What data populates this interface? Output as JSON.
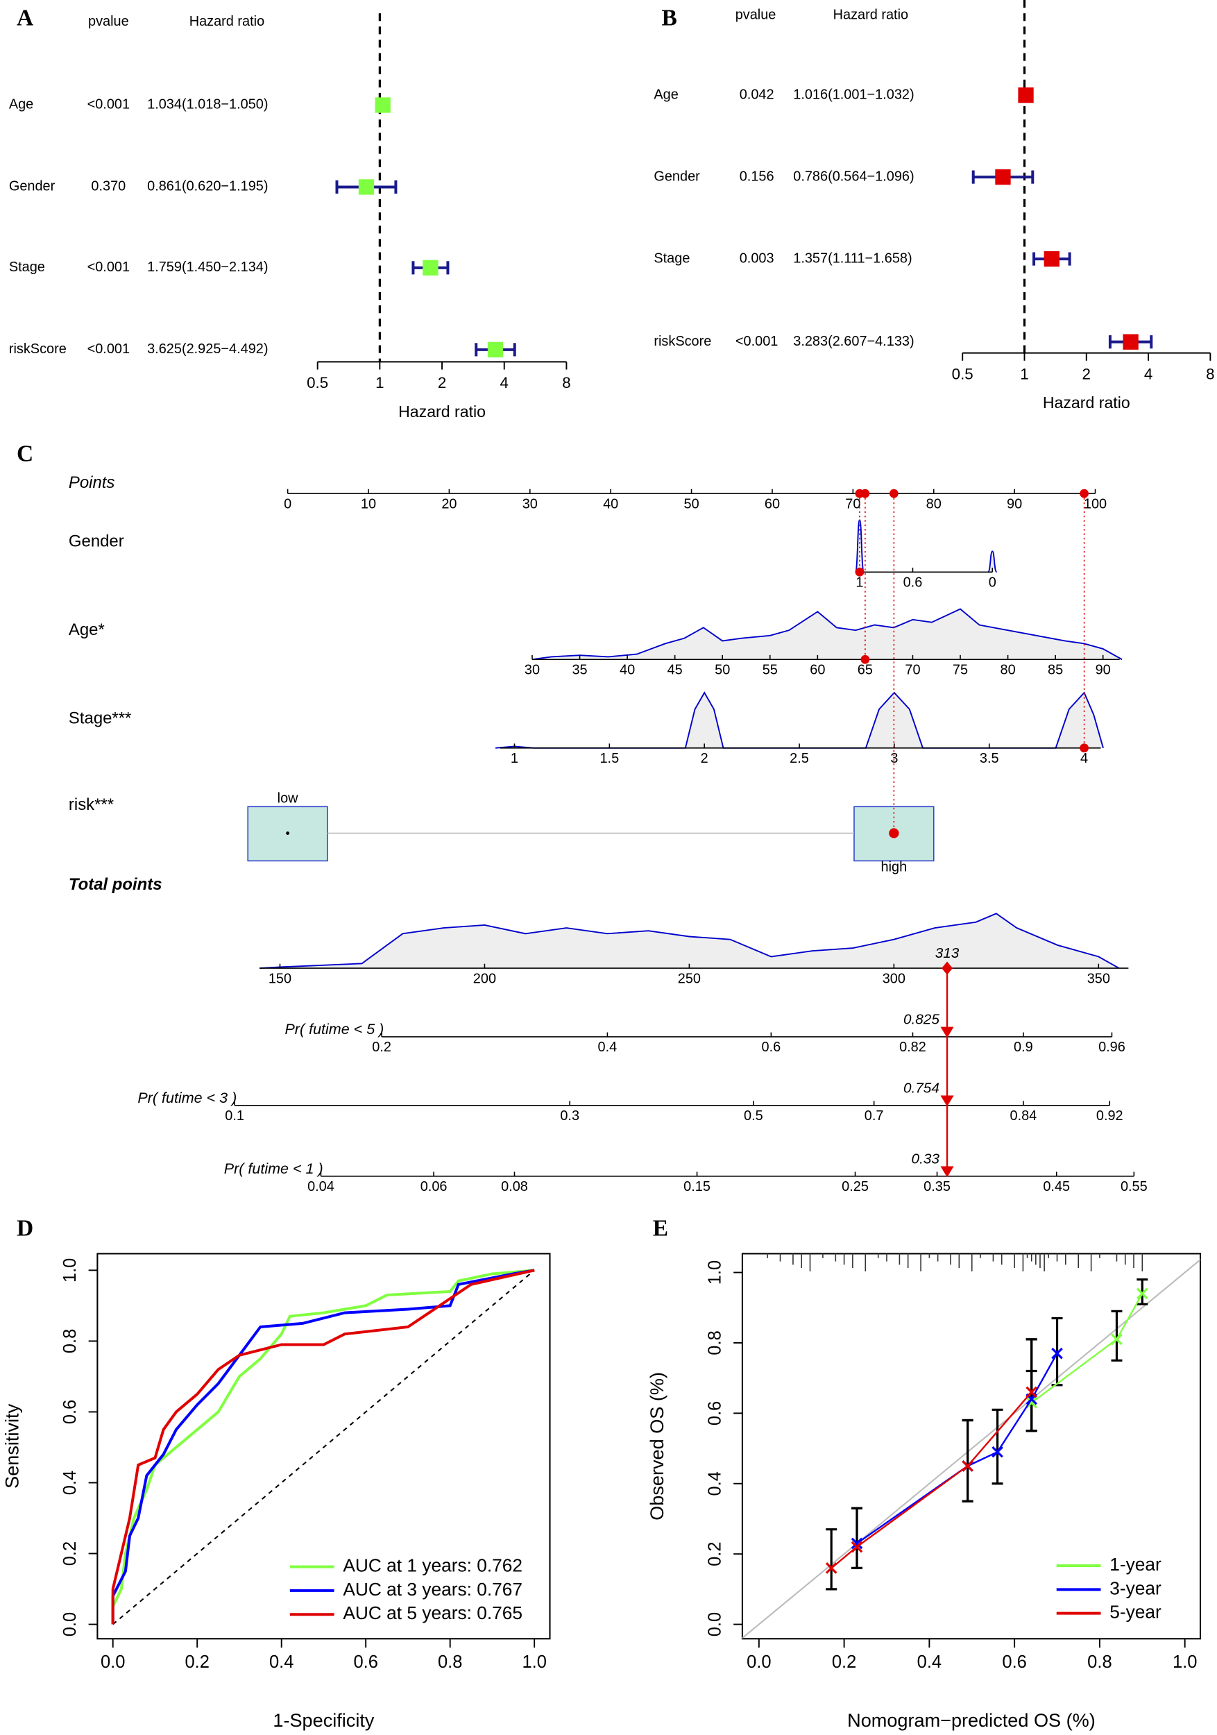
{
  "chart_data": [
    {
      "type": "forest",
      "panel": "A",
      "headers": [
        "pvalue",
        "Hazard ratio"
      ],
      "categories": [
        "Age",
        "Gender",
        "Stage",
        "riskScore"
      ],
      "pvalues": [
        "<0.001",
        "0.370",
        "<0.001",
        "<0.001"
      ],
      "hr_labels": [
        "1.034(1.018−1.050)",
        "0.861(0.620−1.195)",
        "1.759(1.450−2.134)",
        "3.625(2.925−4.492)"
      ],
      "values": [
        1.034,
        0.861,
        1.759,
        3.625
      ],
      "lower": [
        1.018,
        0.62,
        1.45,
        2.925
      ],
      "upper": [
        1.05,
        1.195,
        2.134,
        4.492
      ],
      "xlim": [
        0.5,
        8
      ],
      "xticks": [
        0.5,
        1,
        2,
        4,
        8
      ],
      "log_scale": true,
      "reference": 1,
      "xlabel": "Hazard ratio",
      "color": "#80ff40",
      "bar_color": "#1a1a8c"
    },
    {
      "type": "forest",
      "panel": "B",
      "headers": [
        "pvalue",
        "Hazard ratio"
      ],
      "categories": [
        "Age",
        "Gender",
        "Stage",
        "riskScore"
      ],
      "pvalues": [
        "0.042",
        "0.156",
        "0.003",
        "<0.001"
      ],
      "hr_labels": [
        "1.016(1.001−1.032)",
        "0.786(0.564−1.096)",
        "1.357(1.111−1.658)",
        "3.283(2.607−4.133)"
      ],
      "values": [
        1.016,
        0.786,
        1.357,
        3.283
      ],
      "lower": [
        1.001,
        0.564,
        1.111,
        2.607
      ],
      "upper": [
        1.032,
        1.096,
        1.658,
        4.133
      ],
      "xlim": [
        0.5,
        8
      ],
      "xticks": [
        0.5,
        1,
        2,
        4,
        8
      ],
      "log_scale": true,
      "reference": 1,
      "xlabel": "Hazard ratio",
      "color": "#e00000",
      "bar_color": "#1a1a8c"
    },
    {
      "type": "nomogram",
      "panel": "C",
      "color": "#e00000",
      "density_color": "#0000cc",
      "rows": [
        {
          "label": "Points",
          "lim": [
            0,
            100
          ],
          "ticks": [
            0,
            10,
            20,
            30,
            40,
            50,
            60,
            70,
            80,
            90,
            100
          ]
        },
        {
          "label": "Gender",
          "lim": [
            1,
            0
          ],
          "ticks": [
            1,
            0.6,
            0
          ],
          "selected": 1,
          "density": {
            "x": [
              1,
              0
            ],
            "y": [
              1,
              0.4
            ]
          }
        },
        {
          "label": "Age*",
          "lim": [
            30,
            90
          ],
          "ticks": [
            30,
            35,
            40,
            45,
            50,
            55,
            60,
            65,
            70,
            75,
            80,
            85,
            90
          ],
          "selected": 65,
          "density": {
            "x": [
              30,
              32,
              35,
              38,
              41,
              44,
              46,
              48,
              50,
              52,
              55,
              57,
              60,
              62,
              64,
              66,
              68,
              70,
              72,
              75,
              77,
              80,
              83,
              86,
              88,
              90,
              92
            ],
            "y": [
              0,
              0.05,
              0.08,
              0.05,
              0.1,
              0.3,
              0.4,
              0.6,
              0.35,
              0.4,
              0.45,
              0.55,
              0.9,
              0.6,
              0.55,
              0.65,
              0.6,
              0.75,
              0.7,
              0.95,
              0.65,
              0.55,
              0.45,
              0.35,
              0.3,
              0.2,
              0
            ]
          }
        },
        {
          "label": "Stage***",
          "lim": [
            1,
            4
          ],
          "ticks": [
            1,
            1.5,
            2,
            2.5,
            3,
            3.5,
            4
          ],
          "selected": 4,
          "density": {
            "x": [
              0.9,
              1,
              1.1,
              1.9,
              1.95,
              2,
              2.05,
              2.1,
              2.85,
              2.92,
              3,
              3.08,
              3.15,
              3.85,
              3.92,
              4,
              4.05,
              4.1
            ],
            "y": [
              0,
              0.03,
              0,
              0,
              0.7,
              1,
              0.7,
              0,
              0,
              0.7,
              1,
              0.7,
              0,
              0,
              0.7,
              1,
              0.6,
              0
            ]
          }
        },
        {
          "label": "risk***",
          "categories": [
            "low",
            "high"
          ],
          "selected": 1
        },
        {
          "label": "Total points",
          "lim": [
            150,
            350
          ],
          "ticks": [
            150,
            200,
            250,
            300,
            350
          ],
          "selected": 313,
          "density": {
            "x": [
              145,
              150,
              160,
              170,
              180,
              190,
              200,
              210,
              220,
              230,
              240,
              250,
              260,
              270,
              280,
              290,
              300,
              310,
              320,
              325,
              330,
              340,
              350,
              355
            ],
            "y": [
              0,
              0.02,
              0.05,
              0.08,
              0.6,
              0.7,
              0.75,
              0.6,
              0.7,
              0.6,
              0.65,
              0.55,
              0.5,
              0.2,
              0.3,
              0.35,
              0.5,
              0.7,
              0.8,
              0.95,
              0.7,
              0.4,
              0.2,
              0
            ]
          }
        },
        {
          "label": "Pr( futime < 5 )",
          "ticks": [
            0.2,
            0.4,
            0.6,
            0.82,
            0.9,
            0.96
          ],
          "selected": 0.825
        },
        {
          "label": "Pr( futime < 3 )",
          "ticks": [
            0.1,
            0.3,
            0.5,
            0.7,
            0.84,
            0.92
          ],
          "selected": 0.754
        },
        {
          "label": "Pr( futime < 1 )",
          "ticks": [
            0.04,
            0.06,
            0.08,
            0.15,
            0.25,
            0.35,
            0.45,
            0.55
          ],
          "selected": 0.33
        }
      ]
    },
    {
      "type": "roc",
      "panel": "D",
      "xlabel": "1-Specificity",
      "ylabel": "Sensitivity",
      "legend": "bottomright",
      "xlim": [
        0,
        1
      ],
      "ylim": [
        0,
        1
      ],
      "xticks": [
        {
          "value": 0,
          "label": "0.0"
        },
        0.2,
        0.4,
        0.6,
        0.8,
        {
          "value": 1,
          "label": "1.0"
        }
      ],
      "yticks": [
        {
          "value": 0,
          "label": "0.0"
        },
        0.2,
        0.4,
        0.6,
        0.8,
        {
          "value": 1,
          "label": "1.0"
        }
      ],
      "series": [
        {
          "name": "AUC at 1 years: 0.762",
          "color": "#80ff40",
          "x": [
            0,
            0,
            0.02,
            0.03,
            0.05,
            0.08,
            0.1,
            0.15,
            0.2,
            0.25,
            0.3,
            0.35,
            0.4,
            0.42,
            0.5,
            0.6,
            0.65,
            0.8,
            0.82,
            0.9,
            1
          ],
          "values": [
            0,
            0.05,
            0.1,
            0.2,
            0.3,
            0.38,
            0.45,
            0.5,
            0.55,
            0.6,
            0.7,
            0.75,
            0.82,
            0.87,
            0.88,
            0.9,
            0.93,
            0.94,
            0.97,
            0.99,
            1
          ]
        },
        {
          "name": "AUC at 3 years: 0.767",
          "color": "#0000ff",
          "x": [
            0,
            0,
            0.03,
            0.04,
            0.06,
            0.08,
            0.12,
            0.15,
            0.2,
            0.25,
            0.3,
            0.35,
            0.45,
            0.55,
            0.7,
            0.8,
            0.82,
            0.95,
            1
          ],
          "values": [
            0,
            0.08,
            0.15,
            0.25,
            0.3,
            0.42,
            0.48,
            0.55,
            0.62,
            0.68,
            0.76,
            0.84,
            0.85,
            0.88,
            0.89,
            0.9,
            0.96,
            0.99,
            1
          ]
        },
        {
          "name": "AUC at 5 years: 0.765",
          "color": "#e00000",
          "x": [
            0,
            0,
            0.02,
            0.04,
            0.06,
            0.1,
            0.12,
            0.15,
            0.2,
            0.25,
            0.3,
            0.4,
            0.5,
            0.55,
            0.7,
            0.75,
            0.85,
            1
          ],
          "values": [
            0,
            0.1,
            0.2,
            0.3,
            0.45,
            0.47,
            0.55,
            0.6,
            0.65,
            0.72,
            0.76,
            0.79,
            0.79,
            0.82,
            0.84,
            0.88,
            0.96,
            1
          ]
        }
      ]
    },
    {
      "type": "calibration",
      "panel": "E",
      "xlabel": "Nomogram−predicted OS (%)",
      "ylabel": "Observed OS (%)",
      "legend": "bottomright",
      "xlim": [
        0,
        1
      ],
      "ylim": [
        0,
        1
      ],
      "xticks": [
        {
          "value": 0,
          "label": "0.0"
        },
        0.2,
        0.4,
        0.6,
        0.8,
        {
          "value": 1,
          "label": "1.0"
        }
      ],
      "yticks": [
        {
          "value": 0,
          "label": "0.0"
        },
        0.2,
        0.4,
        0.6,
        0.8,
        {
          "value": 1,
          "label": "1.0"
        }
      ],
      "rug": [
        0.02,
        0.05,
        0.08,
        0.1,
        0.12,
        0.15,
        0.18,
        0.2,
        0.22,
        0.25,
        0.28,
        0.3,
        0.33,
        0.35,
        0.38,
        0.4,
        0.42,
        0.45,
        0.47,
        0.5,
        0.52,
        0.55,
        0.57,
        0.6,
        0.62,
        0.63,
        0.64,
        0.65,
        0.66,
        0.67,
        0.68,
        0.7,
        0.72,
        0.75,
        0.78,
        0.8,
        0.84,
        0.86,
        0.88,
        0.9
      ],
      "series": [
        {
          "name": "1-year",
          "color": "#80ff40",
          "x": [
            0.64,
            0.84,
            0.9
          ],
          "values": [
            0.63,
            0.81,
            0.94
          ],
          "lower": [
            0.55,
            0.75,
            0.91
          ],
          "upper": [
            0.72,
            0.89,
            0.98
          ]
        },
        {
          "name": "3-year",
          "color": "#0000ff",
          "x": [
            0.23,
            0.49,
            0.56,
            0.64,
            0.7
          ],
          "values": [
            0.23,
            0.45,
            0.49,
            0.64,
            0.77
          ],
          "lower": [
            0.16,
            0.35,
            0.4,
            0.55,
            0.68
          ],
          "upper": [
            0.33,
            0.58,
            0.61,
            0.81,
            0.87
          ]
        },
        {
          "name": "5-year",
          "color": "#e00000",
          "x": [
            0.17,
            0.23,
            0.49,
            0.64
          ],
          "values": [
            0.16,
            0.22,
            0.45,
            0.66
          ],
          "lower": [
            0.1,
            0.16,
            0.35,
            0.55
          ],
          "upper": [
            0.27,
            0.33,
            0.58,
            0.81
          ]
        }
      ]
    }
  ]
}
